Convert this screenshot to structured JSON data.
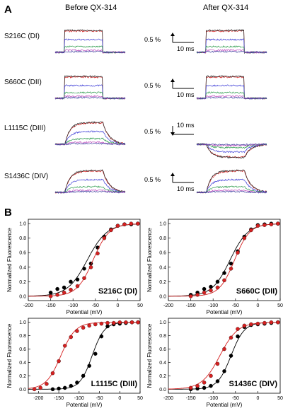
{
  "panel_a": {
    "label": "A",
    "col_before": "Before QX-314",
    "col_after": "After QX-314",
    "rows": [
      {
        "name": "S216C (DI)",
        "scale_pct": "0.5 %",
        "scale_ms": "10 ms",
        "arrow": "up"
      },
      {
        "name": "S660C (DII)",
        "scale_pct": "0.5 %",
        "scale_ms": "10 ms",
        "arrow": "up"
      },
      {
        "name": "L1115C (DIII)",
        "scale_pct": "0.5 %",
        "scale_ms": "10 ms",
        "arrow": "down"
      },
      {
        "name": "S1436C (DIV)",
        "scale_pct": "0.5 %",
        "scale_ms": "10 ms",
        "arrow": "up"
      }
    ],
    "trace_colors": [
      "#d62020",
      "#222222",
      "#3b3bd6",
      "#2a9a4a",
      "#c050c0",
      "#4040a0"
    ]
  },
  "panel_b_label": "B",
  "chart_data": [
    {
      "type": "scatter",
      "title": "S216C (DI)",
      "xlabel": "Potential (mV)",
      "ylabel": "Normalized Fluorescence",
      "xlim": [
        -200,
        50
      ],
      "ylim": [
        0,
        1.0
      ],
      "xticks": [
        -200,
        -150,
        -100,
        -50,
        0,
        50
      ],
      "yticks": [
        0.0,
        0.2,
        0.4,
        0.6,
        0.8,
        1.0
      ],
      "series": [
        {
          "color": "#000000",
          "fit_v_half": -68,
          "fit_k": 22,
          "points": [
            [
              -150,
              0.05
            ],
            [
              -135,
              0.1
            ],
            [
              -120,
              0.12
            ],
            [
              -105,
              0.2
            ],
            [
              -90,
              0.23
            ],
            [
              -75,
              0.38
            ],
            [
              -60,
              0.45
            ],
            [
              -45,
              0.67
            ],
            [
              -30,
              0.82
            ],
            [
              -15,
              0.92
            ],
            [
              0,
              0.97
            ],
            [
              15,
              0.99
            ],
            [
              30,
              0.99
            ],
            [
              45,
              1.0
            ]
          ]
        },
        {
          "color": "#d62020",
          "fit_v_half": -55,
          "fit_k": 18,
          "points": [
            [
              -150,
              0.0
            ],
            [
              -135,
              0.02
            ],
            [
              -120,
              0.05
            ],
            [
              -105,
              0.09
            ],
            [
              -90,
              0.14
            ],
            [
              -75,
              0.25
            ],
            [
              -60,
              0.4
            ],
            [
              -45,
              0.59
            ],
            [
              -30,
              0.8
            ],
            [
              -15,
              0.91
            ],
            [
              0,
              0.97
            ],
            [
              15,
              0.99
            ],
            [
              30,
              1.0
            ],
            [
              45,
              1.0
            ]
          ]
        }
      ]
    },
    {
      "type": "scatter",
      "title": "S660C (DII)",
      "xlabel": "Potential (mV)",
      "ylabel": "Normalized Fluorescence",
      "xlim": [
        -200,
        50
      ],
      "ylim": [
        0,
        1.0
      ],
      "xticks": [
        -200,
        -150,
        -100,
        -50,
        0,
        50
      ],
      "yticks": [
        0.0,
        0.2,
        0.4,
        0.6,
        0.8,
        1.0
      ],
      "series": [
        {
          "color": "#000000",
          "fit_v_half": -62,
          "fit_k": 20,
          "points": [
            [
              -150,
              0.02
            ],
            [
              -135,
              0.05
            ],
            [
              -120,
              0.1
            ],
            [
              -105,
              0.13
            ],
            [
              -90,
              0.2
            ],
            [
              -75,
              0.32
            ],
            [
              -60,
              0.45
            ],
            [
              -45,
              0.62
            ],
            [
              -30,
              0.82
            ],
            [
              -15,
              0.92
            ],
            [
              0,
              0.98
            ],
            [
              15,
              0.99
            ],
            [
              30,
              1.0
            ],
            [
              45,
              1.0
            ]
          ]
        },
        {
          "color": "#d62020",
          "fit_v_half": -52,
          "fit_k": 17,
          "points": [
            [
              -150,
              0.0
            ],
            [
              -135,
              0.02
            ],
            [
              -120,
              0.05
            ],
            [
              -105,
              0.08
            ],
            [
              -90,
              0.12
            ],
            [
              -75,
              0.22
            ],
            [
              -60,
              0.38
            ],
            [
              -45,
              0.6
            ],
            [
              -30,
              0.8
            ],
            [
              -15,
              0.91
            ],
            [
              0,
              0.97
            ],
            [
              15,
              0.98
            ],
            [
              30,
              0.99
            ],
            [
              45,
              1.0
            ]
          ]
        }
      ]
    },
    {
      "type": "scatter",
      "title": "L1115C (DIII)",
      "xlabel": "Potential (mV)",
      "ylabel": "Normalized Fluorescence",
      "xlim": [
        -225,
        50
      ],
      "ylim": [
        0,
        1.0
      ],
      "xticks": [
        -200,
        -150,
        -100,
        -50,
        0,
        50
      ],
      "yticks": [
        0.0,
        0.2,
        0.4,
        0.6,
        0.8,
        1.0
      ],
      "series": [
        {
          "color": "#000000",
          "fit_v_half": -68,
          "fit_k": 15,
          "points": [
            [
              -165,
              0.0
            ],
            [
              -150,
              0.01
            ],
            [
              -135,
              0.02
            ],
            [
              -120,
              0.05
            ],
            [
              -105,
              0.1
            ],
            [
              -90,
              0.2
            ],
            [
              -75,
              0.35
            ],
            [
              -60,
              0.53
            ],
            [
              -45,
              0.79
            ],
            [
              -30,
              0.94
            ],
            [
              -15,
              0.97
            ],
            [
              0,
              0.98
            ],
            [
              15,
              0.99
            ],
            [
              30,
              1.0
            ],
            [
              45,
              1.0
            ]
          ]
        },
        {
          "color": "#d62020",
          "fit_v_half": -145,
          "fit_k": 18,
          "points": [
            [
              -210,
              0.0
            ],
            [
              -195,
              0.02
            ],
            [
              -180,
              0.08
            ],
            [
              -165,
              0.24
            ],
            [
              -150,
              0.42
            ],
            [
              -135,
              0.65
            ],
            [
              -120,
              0.78
            ],
            [
              -105,
              0.87
            ],
            [
              -90,
              0.92
            ],
            [
              -75,
              0.95
            ],
            [
              -60,
              0.97
            ],
            [
              -45,
              0.98
            ],
            [
              -30,
              0.99
            ],
            [
              -15,
              0.99
            ],
            [
              0,
              1.0
            ],
            [
              15,
              1.0
            ],
            [
              30,
              1.0
            ],
            [
              45,
              1.0
            ]
          ]
        }
      ]
    },
    {
      "type": "scatter",
      "title": "S1436C (DIV)",
      "xlabel": "Potential (mV)",
      "ylabel": "Normalized Fluorescence",
      "xlim": [
        -200,
        50
      ],
      "ylim": [
        0,
        1.0
      ],
      "xticks": [
        -200,
        -150,
        -100,
        -50,
        0,
        50
      ],
      "yticks": [
        0.0,
        0.2,
        0.4,
        0.6,
        0.8,
        1.0
      ],
      "series": [
        {
          "color": "#000000",
          "fit_v_half": -60,
          "fit_k": 15,
          "points": [
            [
              -150,
              0.0
            ],
            [
              -135,
              0.01
            ],
            [
              -120,
              0.02
            ],
            [
              -105,
              0.05
            ],
            [
              -90,
              0.12
            ],
            [
              -75,
              0.27
            ],
            [
              -60,
              0.5
            ],
            [
              -45,
              0.79
            ],
            [
              -30,
              0.93
            ],
            [
              -15,
              0.96
            ],
            [
              0,
              0.97
            ],
            [
              15,
              0.98
            ],
            [
              30,
              0.99
            ],
            [
              45,
              1.0
            ]
          ]
        },
        {
          "color": "#d62020",
          "fit_v_half": -85,
          "fit_k": 20,
          "points": [
            [
              -150,
              0.02
            ],
            [
              -135,
              0.05
            ],
            [
              -120,
              0.1
            ],
            [
              -105,
              0.2
            ],
            [
              -90,
              0.38
            ],
            [
              -75,
              0.6
            ],
            [
              -60,
              0.77
            ],
            [
              -45,
              0.9
            ],
            [
              -30,
              0.95
            ],
            [
              -15,
              0.97
            ],
            [
              0,
              0.98
            ],
            [
              15,
              0.99
            ],
            [
              30,
              1.0
            ],
            [
              45,
              1.0
            ]
          ]
        }
      ]
    }
  ]
}
